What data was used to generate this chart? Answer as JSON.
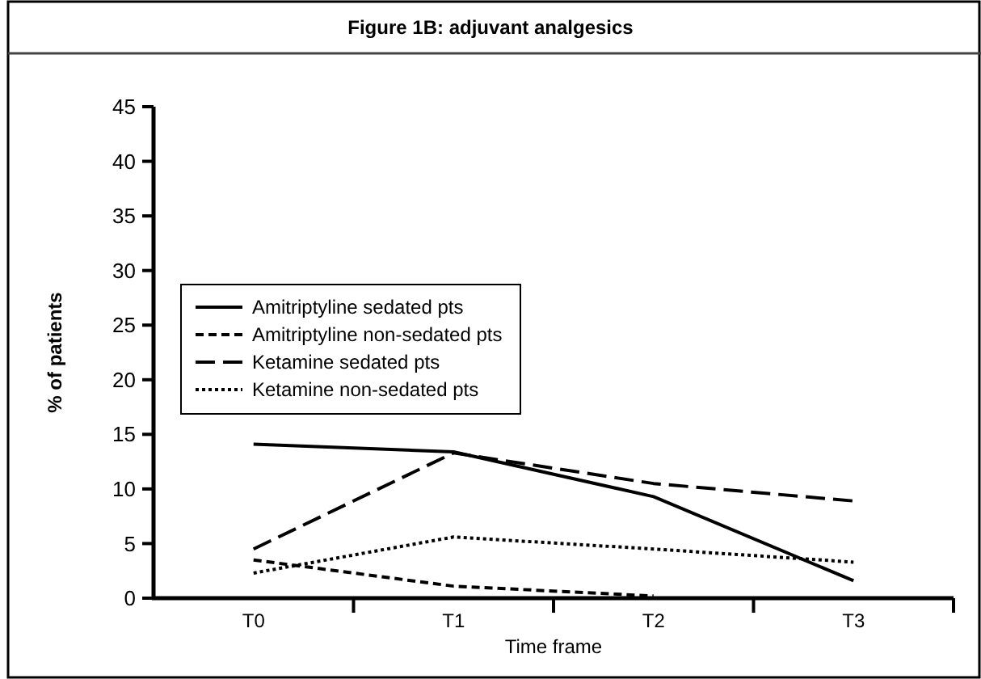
{
  "chart_data": {
    "type": "line",
    "title": "Figure 1B: adjuvant analgesics",
    "xlabel": "Time frame",
    "ylabel": "% of patients",
    "categories": [
      "T0",
      "T1",
      "T2",
      "T3"
    ],
    "series": [
      {
        "name": "Amitriptyline sedated pts",
        "color": "#000000",
        "line_style": "solid",
        "values": [
          14.1,
          13.4,
          9.3,
          1.6
        ]
      },
      {
        "name": "Amitriptyline non-sedated pts",
        "color": "#000000",
        "line_style": "dashed",
        "values": [
          3.5,
          1.1,
          0.2,
          null
        ]
      },
      {
        "name": "Ketamine sedated pts",
        "color": "#000000",
        "line_style": "longdash",
        "values": [
          4.5,
          13.3,
          10.5,
          8.9
        ]
      },
      {
        "name": "Ketamine non-sedated pts",
        "color": "#000000",
        "line_style": "dotted",
        "values": [
          2.3,
          5.6,
          4.5,
          3.3
        ]
      }
    ],
    "ylim": [
      0,
      45
    ],
    "yticks": [
      0,
      5,
      10,
      15,
      20,
      25,
      30,
      35,
      40,
      45
    ],
    "grid": false,
    "legend": "top left",
    "marker": "none"
  }
}
